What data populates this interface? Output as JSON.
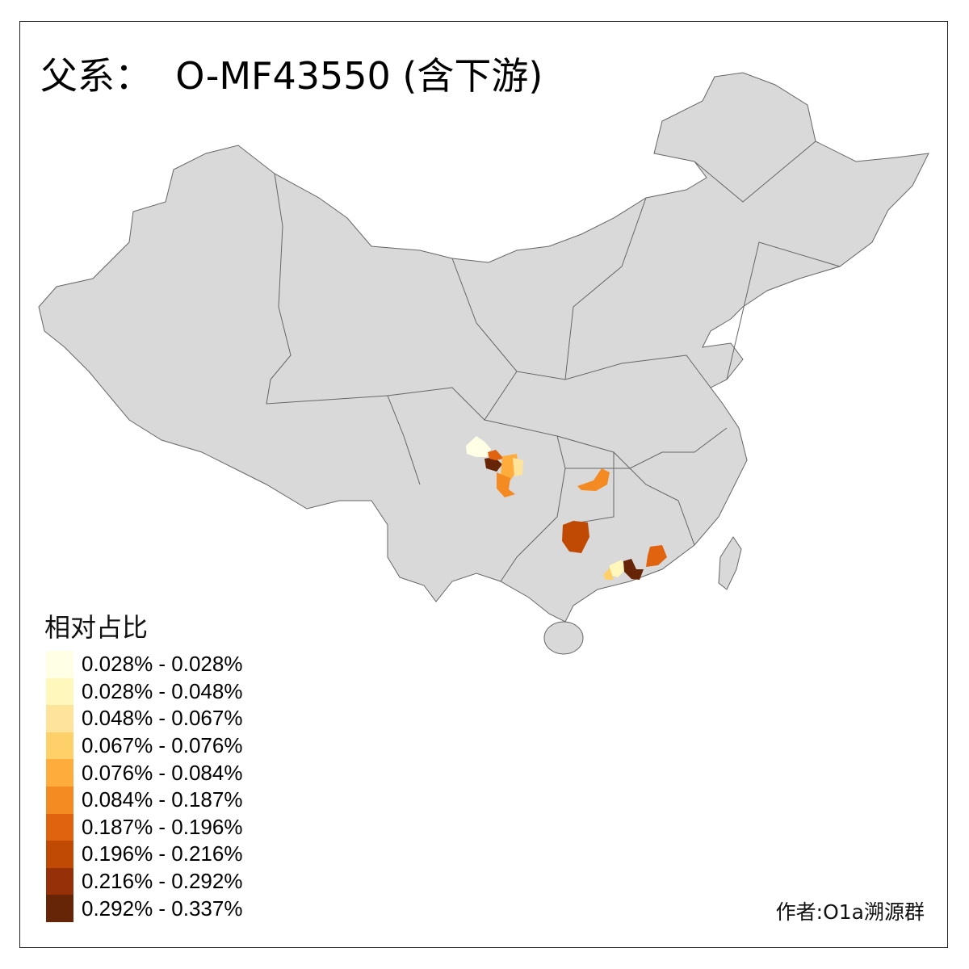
{
  "title": "父系：  O-MF43550 (含下游)",
  "legend": {
    "title": "相对占比",
    "items": [
      {
        "label": "0.028% - 0.028%",
        "color": "#FFFFE5"
      },
      {
        "label": "0.028% - 0.048%",
        "color": "#FFF7BC"
      },
      {
        "label": "0.048% - 0.067%",
        "color": "#FEE49A"
      },
      {
        "label": "0.067% - 0.076%",
        "color": "#FED06A"
      },
      {
        "label": "0.076% - 0.084%",
        "color": "#FEAD3C"
      },
      {
        "label": "0.084% - 0.187%",
        "color": "#F38A22"
      },
      {
        "label": "0.187% - 0.196%",
        "color": "#E0640F"
      },
      {
        "label": "0.196% - 0.216%",
        "color": "#C04A03"
      },
      {
        "label": "0.216% - 0.292%",
        "color": "#963008"
      },
      {
        "label": "0.292% - 0.337%",
        "color": "#662506"
      }
    ]
  },
  "map": {
    "base_color": "#D9D9D9",
    "border_color": "#666666"
  },
  "author": "作者:O1a溯源群"
}
